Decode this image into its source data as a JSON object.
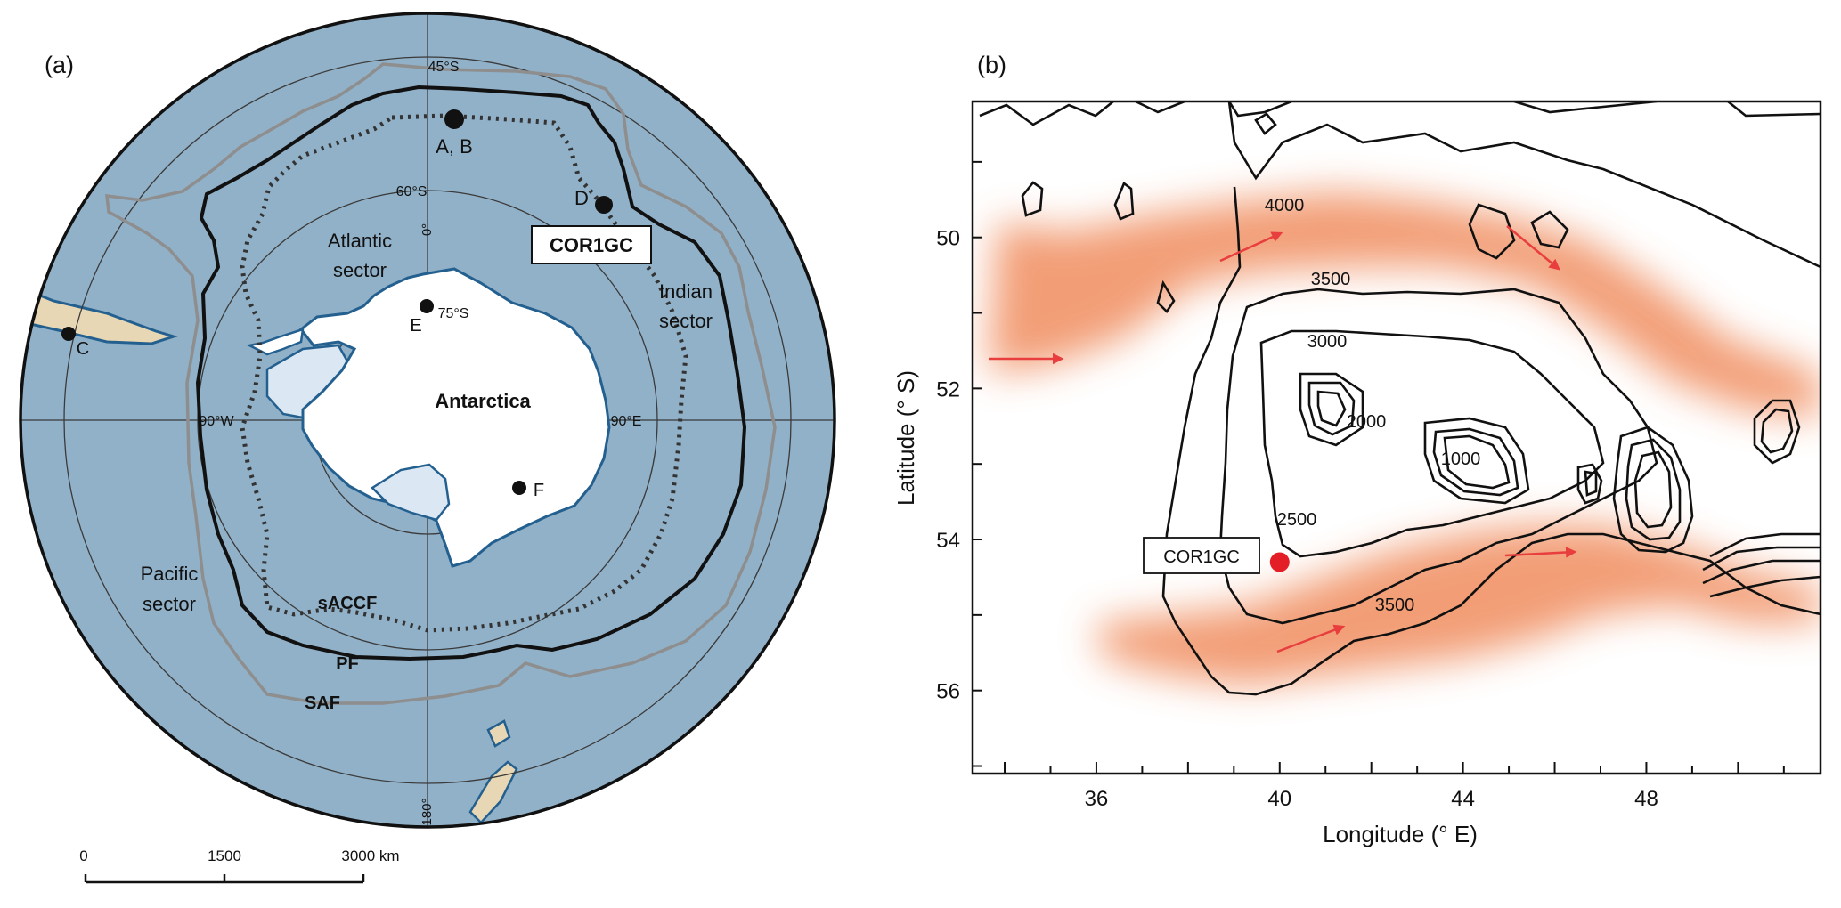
{
  "panel_a": {
    "label": "(a)",
    "lat_labels": [
      "45°S",
      "60°S",
      "75°S"
    ],
    "lon_labels": [
      "0°",
      "90°E",
      "180°",
      "90°W"
    ],
    "sector_labels": {
      "atlantic": [
        "Atlantic",
        "sector"
      ],
      "indian": [
        "Indian",
        "sector"
      ],
      "pacific": [
        "Pacific",
        "sector"
      ]
    },
    "continent": "Antarctica",
    "front_labels": {
      "saccf": "sACCF",
      "pf": "PF",
      "saf": "SAF"
    },
    "sites": {
      "ab": "A, B",
      "c": "C",
      "d": "D",
      "e": "E",
      "f": "F"
    },
    "core_label": "COR1GC",
    "scale_bar": {
      "ticks": [
        "0",
        "1500",
        "3000 km"
      ]
    },
    "colors": {
      "ocean": "#91b1c8",
      "ice": "#ffffff",
      "land": "#e8d7b5",
      "coast": "#24608f"
    }
  },
  "panel_b": {
    "label": "(b)",
    "xlabel": "Longitude (° E)",
    "ylabel": "Latitude (° S)",
    "xticks": [
      "36",
      "40",
      "44",
      "48"
    ],
    "yticks": [
      "50",
      "52",
      "54",
      "56"
    ],
    "xlim": [
      33.3,
      51.8
    ],
    "ylim": [
      48.2,
      57.1
    ],
    "contour_labels": [
      "4000",
      "3500",
      "3000",
      "2000",
      "1000",
      "2500",
      "3500"
    ],
    "core": {
      "label": "COR1GC",
      "lon": 40.0,
      "lat": 54.3
    },
    "colors": {
      "current": "#f08d5e",
      "arrow": "#e83e3e",
      "core": "#e41e26"
    }
  }
}
